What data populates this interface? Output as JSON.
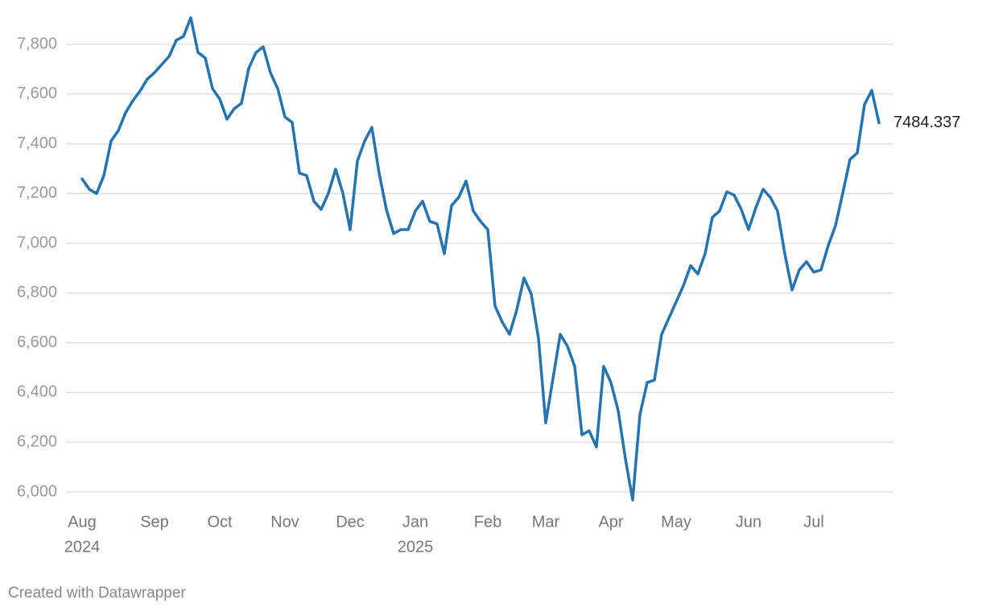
{
  "chart_data": {
    "type": "line",
    "credit": "Created with Datawrapper",
    "categories": [
      "Aug",
      null,
      null,
      null,
      null,
      null,
      null,
      null,
      null,
      null,
      "Sep",
      null,
      null,
      null,
      null,
      null,
      null,
      null,
      null,
      "Oct",
      null,
      null,
      null,
      null,
      null,
      null,
      null,
      null,
      "Nov",
      null,
      null,
      null,
      null,
      null,
      null,
      null,
      null,
      "Dec",
      null,
      null,
      null,
      null,
      null,
      null,
      null,
      null,
      "Jan",
      null,
      null,
      null,
      null,
      null,
      null,
      null,
      null,
      null,
      "Feb",
      null,
      null,
      null,
      null,
      null,
      null,
      null,
      "Mar",
      null,
      null,
      null,
      null,
      null,
      null,
      null,
      null,
      "Apr",
      null,
      null,
      null,
      null,
      null,
      null,
      null,
      null,
      "May",
      null,
      null,
      null,
      null,
      null,
      null,
      null,
      null,
      null,
      "Jun",
      null,
      null,
      null,
      null,
      null,
      null,
      null,
      null,
      "Jul",
      null,
      null,
      null,
      null,
      null,
      null,
      null,
      null,
      null
    ],
    "category_sublabels": [
      "2024",
      null,
      null,
      null,
      null,
      null,
      null,
      null,
      null,
      null,
      null,
      null,
      null,
      null,
      null,
      null,
      null,
      null,
      null,
      null,
      null,
      null,
      null,
      null,
      null,
      null,
      null,
      null,
      null,
      null,
      null,
      null,
      null,
      null,
      null,
      null,
      null,
      null,
      null,
      null,
      null,
      null,
      null,
      null,
      null,
      null,
      "2025",
      null,
      null,
      null,
      null,
      null,
      null,
      null,
      null,
      null,
      null,
      null,
      null,
      null,
      null,
      null,
      null,
      null,
      null,
      null,
      null,
      null,
      null,
      null,
      null,
      null,
      null,
      null,
      null,
      null,
      null,
      null,
      null,
      null,
      null,
      null,
      null,
      null,
      null,
      null,
      null,
      null,
      null,
      null,
      null,
      null,
      null,
      null,
      null,
      null,
      null,
      null,
      null,
      null,
      null,
      null,
      null,
      null,
      null,
      null,
      null,
      null,
      null,
      null,
      null
    ],
    "values": [
      7259,
      7217,
      7200,
      7272,
      7411,
      7453,
      7525,
      7573,
      7612,
      7660,
      7686,
      7719,
      7751,
      7816,
      7832,
      7907,
      7767,
      7745,
      7622,
      7580,
      7499,
      7541,
      7563,
      7703,
      7767,
      7790,
      7686,
      7622,
      7508,
      7486,
      7282,
      7272,
      7169,
      7136,
      7201,
      7298,
      7201,
      7055,
      7330,
      7411,
      7466,
      7282,
      7136,
      7039,
      7055,
      7055,
      7130,
      7169,
      7088,
      7078,
      6958,
      7152,
      7185,
      7250,
      7130,
      7088,
      7055,
      6748,
      6683,
      6634,
      6732,
      6861,
      6796,
      6618,
      6278,
      6456,
      6634,
      6586,
      6505,
      6230,
      6246,
      6181,
      6505,
      6440,
      6327,
      6133,
      5968,
      6311,
      6440,
      6450,
      6634,
      6699,
      6764,
      6829,
      6910,
      6877,
      6958,
      7104,
      7130,
      7207,
      7194,
      7136,
      7055,
      7143,
      7217,
      7185,
      7130,
      6958,
      6812,
      6893,
      6926,
      6884,
      6893,
      6991,
      7071,
      7201,
      7337,
      7363,
      7557,
      7615,
      7484.337
    ],
    "color": "#2574b0",
    "ylim": [
      5940,
      7920
    ],
    "yticks": [
      {
        "value": 6000,
        "label": "6,000"
      },
      {
        "value": 6200,
        "label": "6,200"
      },
      {
        "value": 6400,
        "label": "6,400"
      },
      {
        "value": 6600,
        "label": "6,600"
      },
      {
        "value": 6800,
        "label": "6,800"
      },
      {
        "value": 7000,
        "label": "7,000"
      },
      {
        "value": 7200,
        "label": "7,200"
      },
      {
        "value": 7400,
        "label": "7,400"
      },
      {
        "value": 7600,
        "label": "7,600"
      },
      {
        "value": 7800,
        "label": "7,800"
      }
    ],
    "grid": true
  }
}
